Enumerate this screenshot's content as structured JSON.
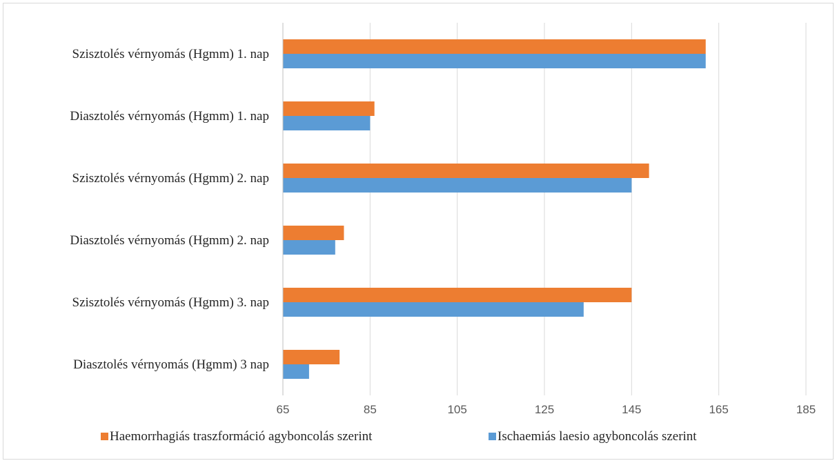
{
  "chart_data": {
    "type": "bar",
    "orientation": "horizontal",
    "categories": [
      "Szisztolés vérnyomás (Hgmm) 1. nap",
      "Diasztolés vérnyomás (Hgmm) 1. nap",
      "Szisztolés vérnyomás (Hgmm) 2. nap",
      "Diasztolés vérnyomás (Hgmm) 2. nap",
      "Szisztolés vérnyomás (Hgmm) 3. nap",
      "Diasztolés vérnyomás (Hgmm) 3 nap"
    ],
    "series": [
      {
        "name": "Haemorrhagiás traszformáció agyboncolás szerint",
        "color": "#ED7D31",
        "values": [
          162,
          86,
          149,
          79,
          145,
          78
        ]
      },
      {
        "name": "Ischaemiás laesio agyboncolás szerint",
        "color": "#5B9BD5",
        "values": [
          162,
          85,
          145,
          77,
          134,
          71
        ]
      }
    ],
    "xlim": [
      65,
      185
    ],
    "xticks": [
      "65",
      "85",
      "105",
      "125",
      "145",
      "165",
      "185"
    ],
    "grid": true,
    "legend_position": "bottom",
    "title": "",
    "xlabel": "",
    "ylabel": ""
  }
}
